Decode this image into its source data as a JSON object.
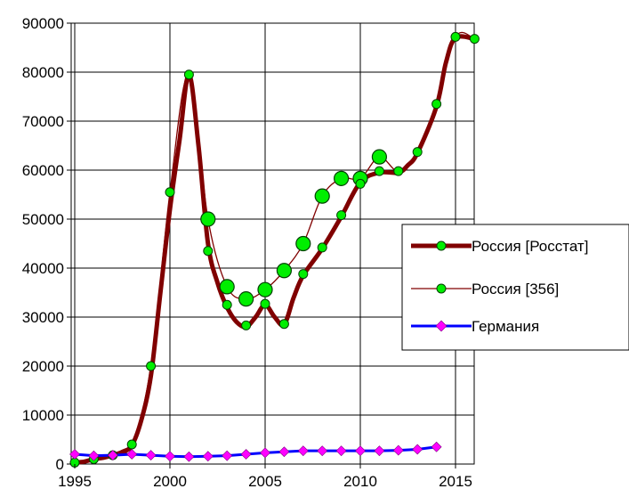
{
  "chart_data": {
    "type": "line",
    "title": "",
    "xlabel": "",
    "ylabel": "",
    "xlim": [
      1995,
      2016
    ],
    "ylim": [
      0,
      90000
    ],
    "grid": "vertical and horizontal gridlines",
    "legend_position": "right",
    "x_ticks": [
      "1995",
      "2000",
      "2005",
      "2010",
      "2015"
    ],
    "y_ticks": [
      "0",
      "10000",
      "20000",
      "30000",
      "40000",
      "50000",
      "60000",
      "70000",
      "80000",
      "90000"
    ],
    "series": [
      {
        "name": "Россия [Росстат]",
        "color": "#800000",
        "marker": "none",
        "points": [
          [
            1995,
            300
          ],
          [
            1995.5,
            500
          ],
          [
            1996,
            1000
          ],
          [
            1996.5,
            1300
          ],
          [
            1997,
            1800
          ],
          [
            1997.5,
            2500
          ],
          [
            1998,
            3800
          ],
          [
            1998.5,
            9000
          ],
          [
            1999,
            18000
          ],
          [
            1999.5,
            35000
          ],
          [
            2000,
            52000
          ],
          [
            2000.5,
            66000
          ],
          [
            2001,
            79500
          ],
          [
            2001.5,
            65000
          ],
          [
            2002,
            45000
          ],
          [
            2002.5,
            37000
          ],
          [
            2003,
            32000
          ],
          [
            2003.5,
            29000
          ],
          [
            2004,
            28000
          ],
          [
            2004.5,
            30000
          ],
          [
            2005,
            32500
          ],
          [
            2005.5,
            30000
          ],
          [
            2006,
            28500
          ],
          [
            2006.5,
            34000
          ],
          [
            2007,
            38500
          ],
          [
            2008,
            44000
          ],
          [
            2009,
            50500
          ],
          [
            2010,
            57500
          ],
          [
            2011,
            59500
          ],
          [
            2012,
            59500
          ],
          [
            2012.5,
            61000
          ],
          [
            2013,
            63500
          ],
          [
            2014,
            73000
          ],
          [
            2014.5,
            82000
          ],
          [
            2015,
            87000
          ],
          [
            2016,
            86800
          ]
        ]
      },
      {
        "name": "Россия [356]",
        "color": "#800000",
        "marker": "green-circle",
        "points": [
          [
            1995,
            300
          ],
          [
            1996,
            1000
          ],
          [
            1997,
            1800
          ],
          [
            1998,
            4000
          ],
          [
            1999,
            20000
          ],
          [
            2000,
            55500
          ],
          [
            2001,
            79500
          ],
          [
            2002,
            43500
          ],
          [
            2003,
            32500
          ],
          [
            2004,
            28300
          ],
          [
            2005,
            32700
          ],
          [
            2006,
            28600
          ],
          [
            2007,
            38800
          ],
          [
            2008,
            44200
          ],
          [
            2009,
            50800
          ],
          [
            2010,
            57200
          ],
          [
            2011,
            59800
          ],
          [
            2012,
            59800
          ],
          [
            2013,
            63700
          ],
          [
            2014,
            73500
          ],
          [
            2015,
            87200
          ],
          [
            2016,
            86800
          ]
        ]
      },
      {
        "name": "",
        "color": "#800000",
        "marker": "large-green-circle",
        "points": [
          [
            2002,
            50000
          ],
          [
            2003,
            36200
          ],
          [
            2004,
            33700
          ],
          [
            2005,
            35600
          ],
          [
            2006,
            39500
          ],
          [
            2007,
            45000
          ],
          [
            2008,
            54700
          ],
          [
            2009,
            58300
          ],
          [
            2010,
            58300
          ],
          [
            2011,
            62700
          ]
        ]
      },
      {
        "name": "Германия",
        "color": "#0000ff",
        "marker": "magenta-diamond",
        "points": [
          [
            1995,
            2000
          ],
          [
            1996,
            1700
          ],
          [
            1997,
            1800
          ],
          [
            1998,
            2000
          ],
          [
            1999,
            1800
          ],
          [
            2000,
            1600
          ],
          [
            2001,
            1500
          ],
          [
            2002,
            1600
          ],
          [
            2003,
            1700
          ],
          [
            2004,
            2000
          ],
          [
            2005,
            2300
          ],
          [
            2006,
            2500
          ],
          [
            2007,
            2700
          ],
          [
            2008,
            2700
          ],
          [
            2009,
            2700
          ],
          [
            2010,
            2700
          ],
          [
            2011,
            2700
          ],
          [
            2012,
            2800
          ],
          [
            2013,
            3000
          ],
          [
            2014,
            3500
          ]
        ]
      }
    ],
    "legend": [
      {
        "label": "Россия [Росстат]",
        "style": "thick-line-green-marker"
      },
      {
        "label": "Россия [356]",
        "style": "thin-line-green-marker"
      },
      {
        "label": "Германия",
        "style": "blue-line-magenta-diamond"
      }
    ]
  }
}
